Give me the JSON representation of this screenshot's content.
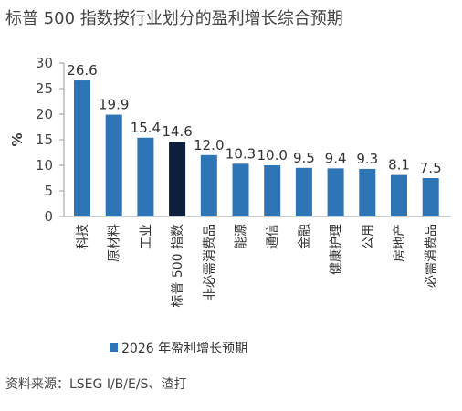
{
  "page": {
    "title": "标普 500 指数按行业划分的盈利增长综合预期",
    "source": "资料来源：LSEG I/B/E/S、渣打"
  },
  "colors": {
    "bar": "#2e75b6",
    "highlight": "#0d1f3c",
    "axis": "#999999"
  },
  "chart_data": {
    "type": "bar",
    "categories": [
      "科技",
      "原材料",
      "工业",
      "标普 500 指数",
      "非必需消费品",
      "能源",
      "通信",
      "金融",
      "健康护理",
      "公用",
      "房地产",
      "必需消费品"
    ],
    "values": [
      26.6,
      19.9,
      15.4,
      14.6,
      12.0,
      10.3,
      10.0,
      9.5,
      9.4,
      9.3,
      8.1,
      7.5
    ],
    "value_labels": [
      "26.6",
      "19.9",
      "15.4",
      "14.6",
      "12.0",
      "10.3",
      "10.0",
      "9.5",
      "9.4",
      "9.3",
      "8.1",
      "7.5"
    ],
    "highlight_index": 3,
    "ylabel": "%",
    "ylim": [
      0,
      30
    ],
    "yticks": [
      0,
      5,
      10,
      15,
      20,
      25,
      30
    ],
    "grid": false,
    "legend": {
      "position": "bottom-left",
      "entries": [
        "2026 年盈利增长预期"
      ]
    }
  }
}
